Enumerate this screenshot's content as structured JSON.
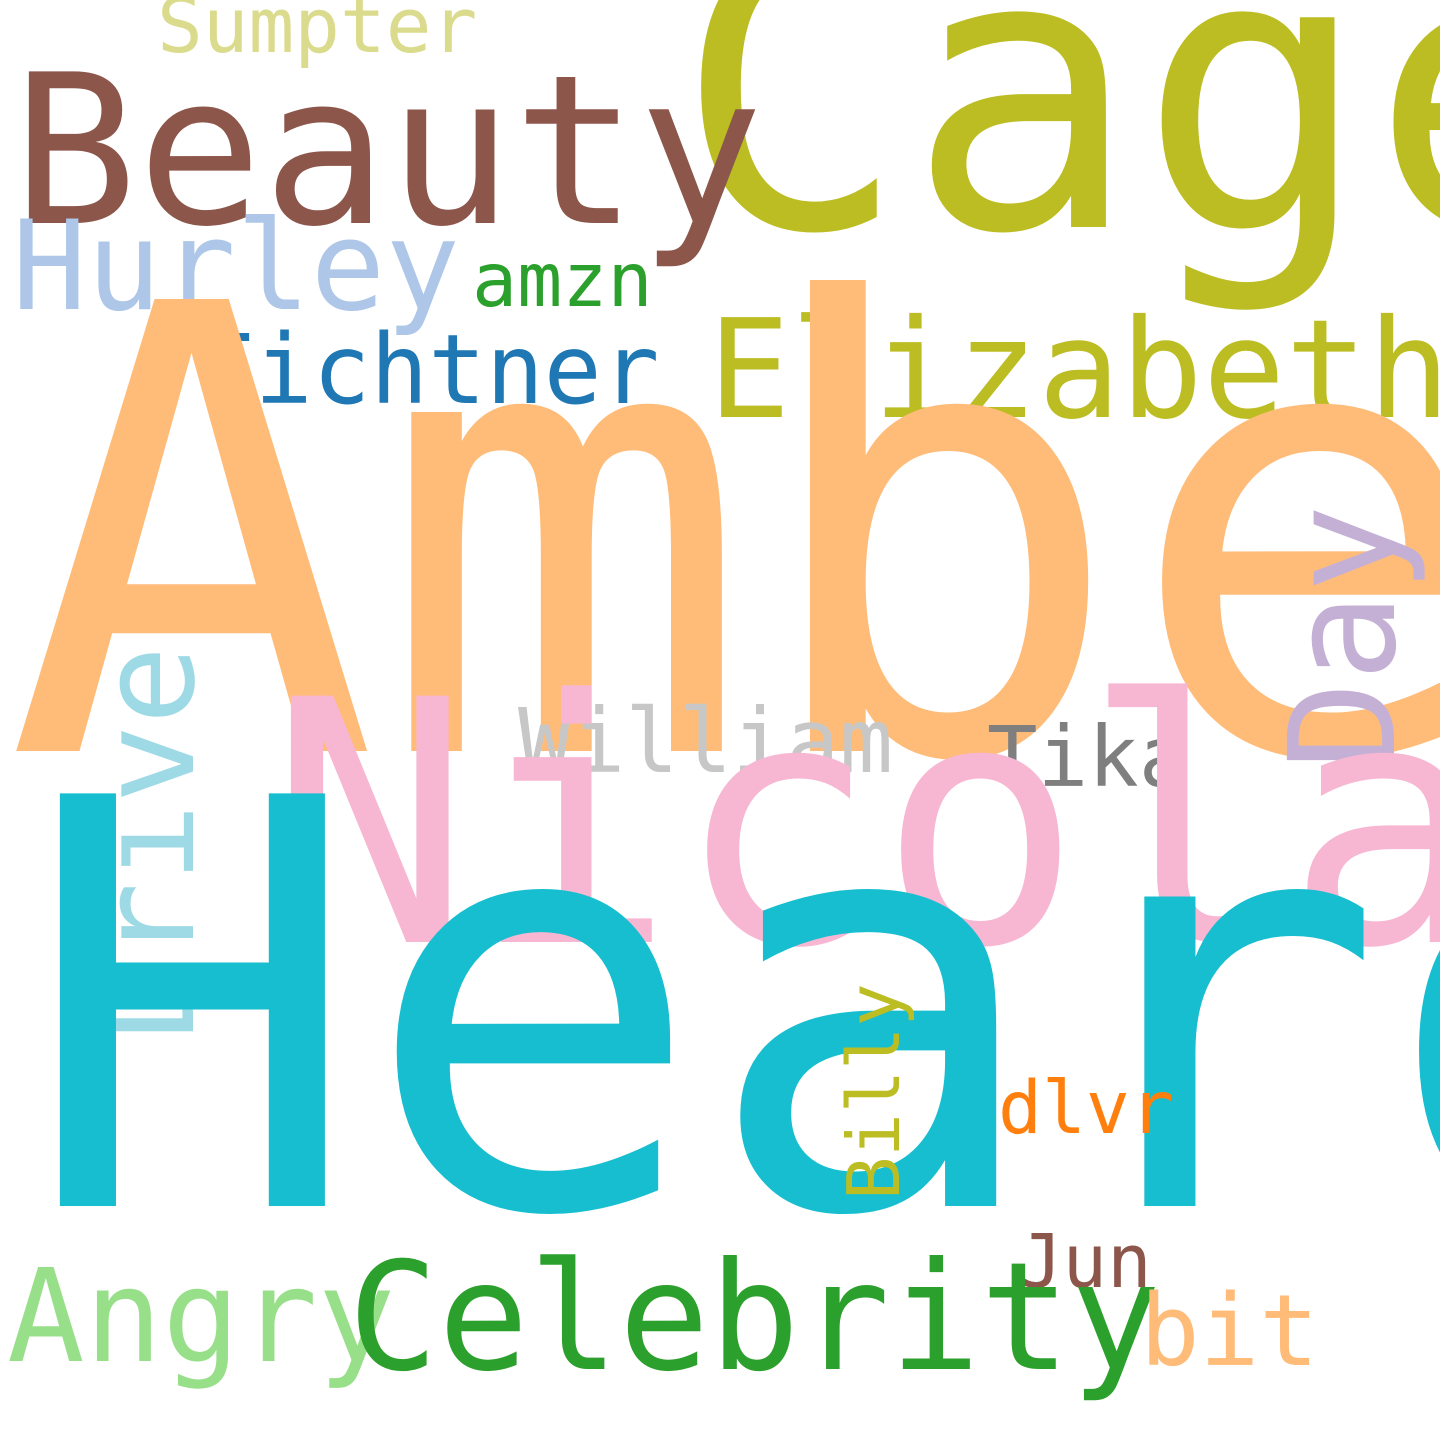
{
  "words": {
    "amber": {
      "text": "Amber",
      "color": "#FFBC79"
    },
    "heard": {
      "text": "Heard",
      "color": "#17BECF"
    },
    "cage": {
      "text": "Cage",
      "color": "#BCBD22"
    },
    "nicolas": {
      "text": "Nicolas",
      "color": "#F7B6D2"
    },
    "beauty": {
      "text": "Beauty",
      "color": "#8C564B"
    },
    "celebrity": {
      "text": "Celebrity",
      "color": "#2CA02C"
    },
    "day": {
      "text": "Day",
      "color": "#C5B0D5"
    },
    "elizabeth": {
      "text": "Elizabeth",
      "color": "#BCBD22"
    },
    "drive": {
      "text": "Drive",
      "color": "#9EDAE5"
    },
    "angry": {
      "text": "Angry",
      "color": "#98DF8A"
    },
    "hurley": {
      "text": "Hurley",
      "color": "#AEC7E8"
    },
    "bit": {
      "text": "bit",
      "color": "#FFBB78"
    },
    "fichtner": {
      "text": "Fichtner",
      "color": "#1F77B4"
    },
    "william": {
      "text": "William",
      "color": "#C7C7C7"
    },
    "tika": {
      "text": "Tika",
      "color": "#7F7F7F"
    },
    "sumpter": {
      "text": "Sumpter",
      "color": "#DBDB8D"
    },
    "amzn": {
      "text": "amzn",
      "color": "#2CA02C"
    },
    "jun": {
      "text": "Jun",
      "color": "#8C564B"
    },
    "dlvr": {
      "text": "dlvr",
      "color": "#FF7F0E"
    },
    "billy": {
      "text": "Billy",
      "color": "#BCBD22"
    }
  }
}
